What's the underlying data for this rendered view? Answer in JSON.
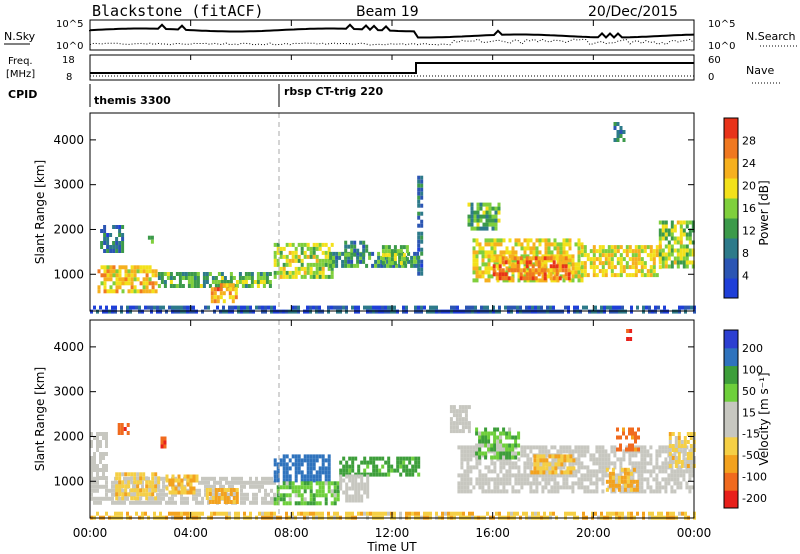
{
  "header": {
    "station": "Blackstone (fitACF)",
    "beam": "Beam 19",
    "date": "20/Dec/2015"
  },
  "top_panels": {
    "nsky_label": "N.Sky",
    "nsky_ticks": [
      "10^5",
      "10^0"
    ],
    "nsearch_label": "N.Search",
    "nsearch_ticks": [
      "10^5",
      "10^0"
    ],
    "freq_label": "Freq.",
    "freq_unit": "[MHz]",
    "freq_ticks": [
      "18",
      "8"
    ],
    "nave_label": "Nave",
    "nave_ticks": [
      "60",
      "0"
    ],
    "cpid_label": "CPID",
    "cpid_segments": [
      {
        "label": "themis 3300",
        "start_hour": 0,
        "end_hour": 7.5
      },
      {
        "label": "rbsp CT-trig 220",
        "start_hour": 7.5,
        "end_hour": 24
      }
    ]
  },
  "colors": {
    "power": [
      "#1f3fd8",
      "#2b55b3",
      "#2d7a8a",
      "#3c9a4a",
      "#7fcf3c",
      "#f3e11b",
      "#f6b01e",
      "#f07820",
      "#e8331a"
    ],
    "velocity": [
      "#e8201b",
      "#f06a1e",
      "#f3a21e",
      "#f5cf45",
      "#c7c7c0",
      "#c7c7c0",
      "#6ecf3b",
      "#3d9e3a",
      "#2f73bd",
      "#2c3fd1"
    ],
    "ground_scatter": "#c7c7c0"
  },
  "chart_data": [
    {
      "type": "heatmap",
      "name": "power",
      "xlabel": "",
      "ylabel": "Slant Range [km]",
      "xlim": [
        0,
        24
      ],
      "ylim": [
        180,
        4600
      ],
      "yticks": [
        1000,
        2000,
        3000,
        4000
      ],
      "colorbar": {
        "label": "Power [dB]",
        "range": [
          0,
          32
        ],
        "ticks": [
          "4",
          "8",
          "12",
          "16",
          "20",
          "24",
          "28"
        ]
      },
      "regions": [
        {
          "t0": 0.3,
          "t1": 2.6,
          "r0": 600,
          "r1": 1200,
          "v": 22
        },
        {
          "t0": 0.4,
          "t1": 1.3,
          "r0": 1500,
          "r1": 2100,
          "v": 8
        },
        {
          "t0": 2.3,
          "t1": 2.5,
          "r0": 1750,
          "r1": 1950,
          "v": 10
        },
        {
          "t0": 2.7,
          "t1": 7.2,
          "r0": 700,
          "r1": 1050,
          "v": 14
        },
        {
          "t0": 4.8,
          "t1": 5.8,
          "r0": 380,
          "r1": 800,
          "v": 24
        },
        {
          "t0": 7.3,
          "t1": 9.6,
          "r0": 900,
          "r1": 1700,
          "v": 18
        },
        {
          "t0": 9.5,
          "t1": 13.0,
          "r0": 1150,
          "r1": 1500,
          "v": 11
        },
        {
          "t0": 10.1,
          "t1": 11.0,
          "r0": 1450,
          "r1": 1750,
          "v": 11
        },
        {
          "t0": 11.6,
          "t1": 12.6,
          "r0": 1250,
          "r1": 1650,
          "v": 16
        },
        {
          "t0": 15.2,
          "t1": 19.5,
          "r0": 900,
          "r1": 1800,
          "v": 20
        },
        {
          "t0": 16.0,
          "t1": 19.0,
          "r0": 900,
          "r1": 1400,
          "v": 26
        },
        {
          "t0": 19.5,
          "t1": 22.6,
          "r0": 950,
          "r1": 1650,
          "v": 20
        },
        {
          "t0": 22.6,
          "t1": 24.0,
          "r0": 1200,
          "r1": 2200,
          "v": 17
        },
        {
          "t0": 15.0,
          "t1": 16.2,
          "r0": 2000,
          "r1": 2600,
          "v": 14
        },
        {
          "t0": 13.0,
          "t1": 13.2,
          "r0": 1000,
          "r1": 3200,
          "v": 7
        },
        {
          "t0": 0.0,
          "t1": 24.0,
          "r0": 190,
          "r1": 300,
          "v": 5
        },
        {
          "t0": 20.8,
          "t1": 21.2,
          "r0": 4000,
          "r1": 4400,
          "v": 9
        }
      ]
    },
    {
      "type": "heatmap",
      "name": "velocity",
      "xlabel": "Time UT",
      "ylabel": "Slant Range [km]",
      "xlim": [
        0,
        24
      ],
      "ylim": [
        180,
        4600
      ],
      "xticks": [
        "00:00",
        "04:00",
        "08:00",
        "12:00",
        "16:00",
        "20:00",
        "00:00"
      ],
      "yticks": [
        1000,
        2000,
        3000,
        4000
      ],
      "colorbar": {
        "label": "Velocity [m s⁻¹]",
        "range": [
          -250,
          250
        ],
        "ticks": [
          "200",
          "100",
          "50",
          "15",
          "-15",
          "-50",
          "-100",
          "-200"
        ]
      },
      "regions": [
        {
          "t0": 0.0,
          "t1": 7.3,
          "r0": 550,
          "r1": 1100,
          "v": 0,
          "gs": true
        },
        {
          "t0": 0.0,
          "t1": 0.7,
          "r0": 1100,
          "r1": 2100,
          "v": 0,
          "gs": true
        },
        {
          "t0": 1.0,
          "t1": 2.7,
          "r0": 650,
          "r1": 1200,
          "v": -30
        },
        {
          "t0": 3.0,
          "t1": 4.2,
          "r0": 750,
          "r1": 1150,
          "v": -45
        },
        {
          "t0": 4.6,
          "t1": 5.8,
          "r0": 500,
          "r1": 850,
          "v": -60
        },
        {
          "t0": 7.3,
          "t1": 9.5,
          "r0": 1000,
          "r1": 1600,
          "v": 170
        },
        {
          "t0": 7.3,
          "t1": 9.9,
          "r0": 550,
          "r1": 1000,
          "v": 40
        },
        {
          "t0": 9.9,
          "t1": 13.0,
          "r0": 1150,
          "r1": 1550,
          "v": 70
        },
        {
          "t0": 9.9,
          "t1": 11.0,
          "r0": 550,
          "r1": 1150,
          "v": 0,
          "gs": true
        },
        {
          "t0": 14.6,
          "t1": 24.0,
          "r0": 800,
          "r1": 1800,
          "v": 0,
          "gs": true
        },
        {
          "t0": 14.3,
          "t1": 15.1,
          "r0": 2100,
          "r1": 2700,
          "v": 0,
          "gs": true
        },
        {
          "t0": 15.3,
          "t1": 17.0,
          "r0": 1500,
          "r1": 2200,
          "v": 35
        },
        {
          "t0": 17.5,
          "t1": 19.2,
          "r0": 1200,
          "r1": 1600,
          "v": -40
        },
        {
          "t0": 20.5,
          "t1": 21.8,
          "r0": 800,
          "r1": 1300,
          "v": -60
        },
        {
          "t0": 23.0,
          "t1": 24.0,
          "r0": 1300,
          "r1": 2100,
          "v": -25
        },
        {
          "t0": 20.9,
          "t1": 21.8,
          "r0": 1700,
          "r1": 2200,
          "v": -120
        },
        {
          "t0": 1.1,
          "t1": 1.5,
          "r0": 2100,
          "r1": 2300,
          "v": -180
        },
        {
          "t0": 2.8,
          "t1": 3.0,
          "r0": 1800,
          "r1": 2000,
          "v": -200
        },
        {
          "t0": 21.3,
          "t1": 21.5,
          "r0": 4200,
          "r1": 4400,
          "v": -220
        },
        {
          "t0": 0.0,
          "t1": 24.0,
          "r0": 190,
          "r1": 320,
          "v": -40
        }
      ]
    }
  ]
}
